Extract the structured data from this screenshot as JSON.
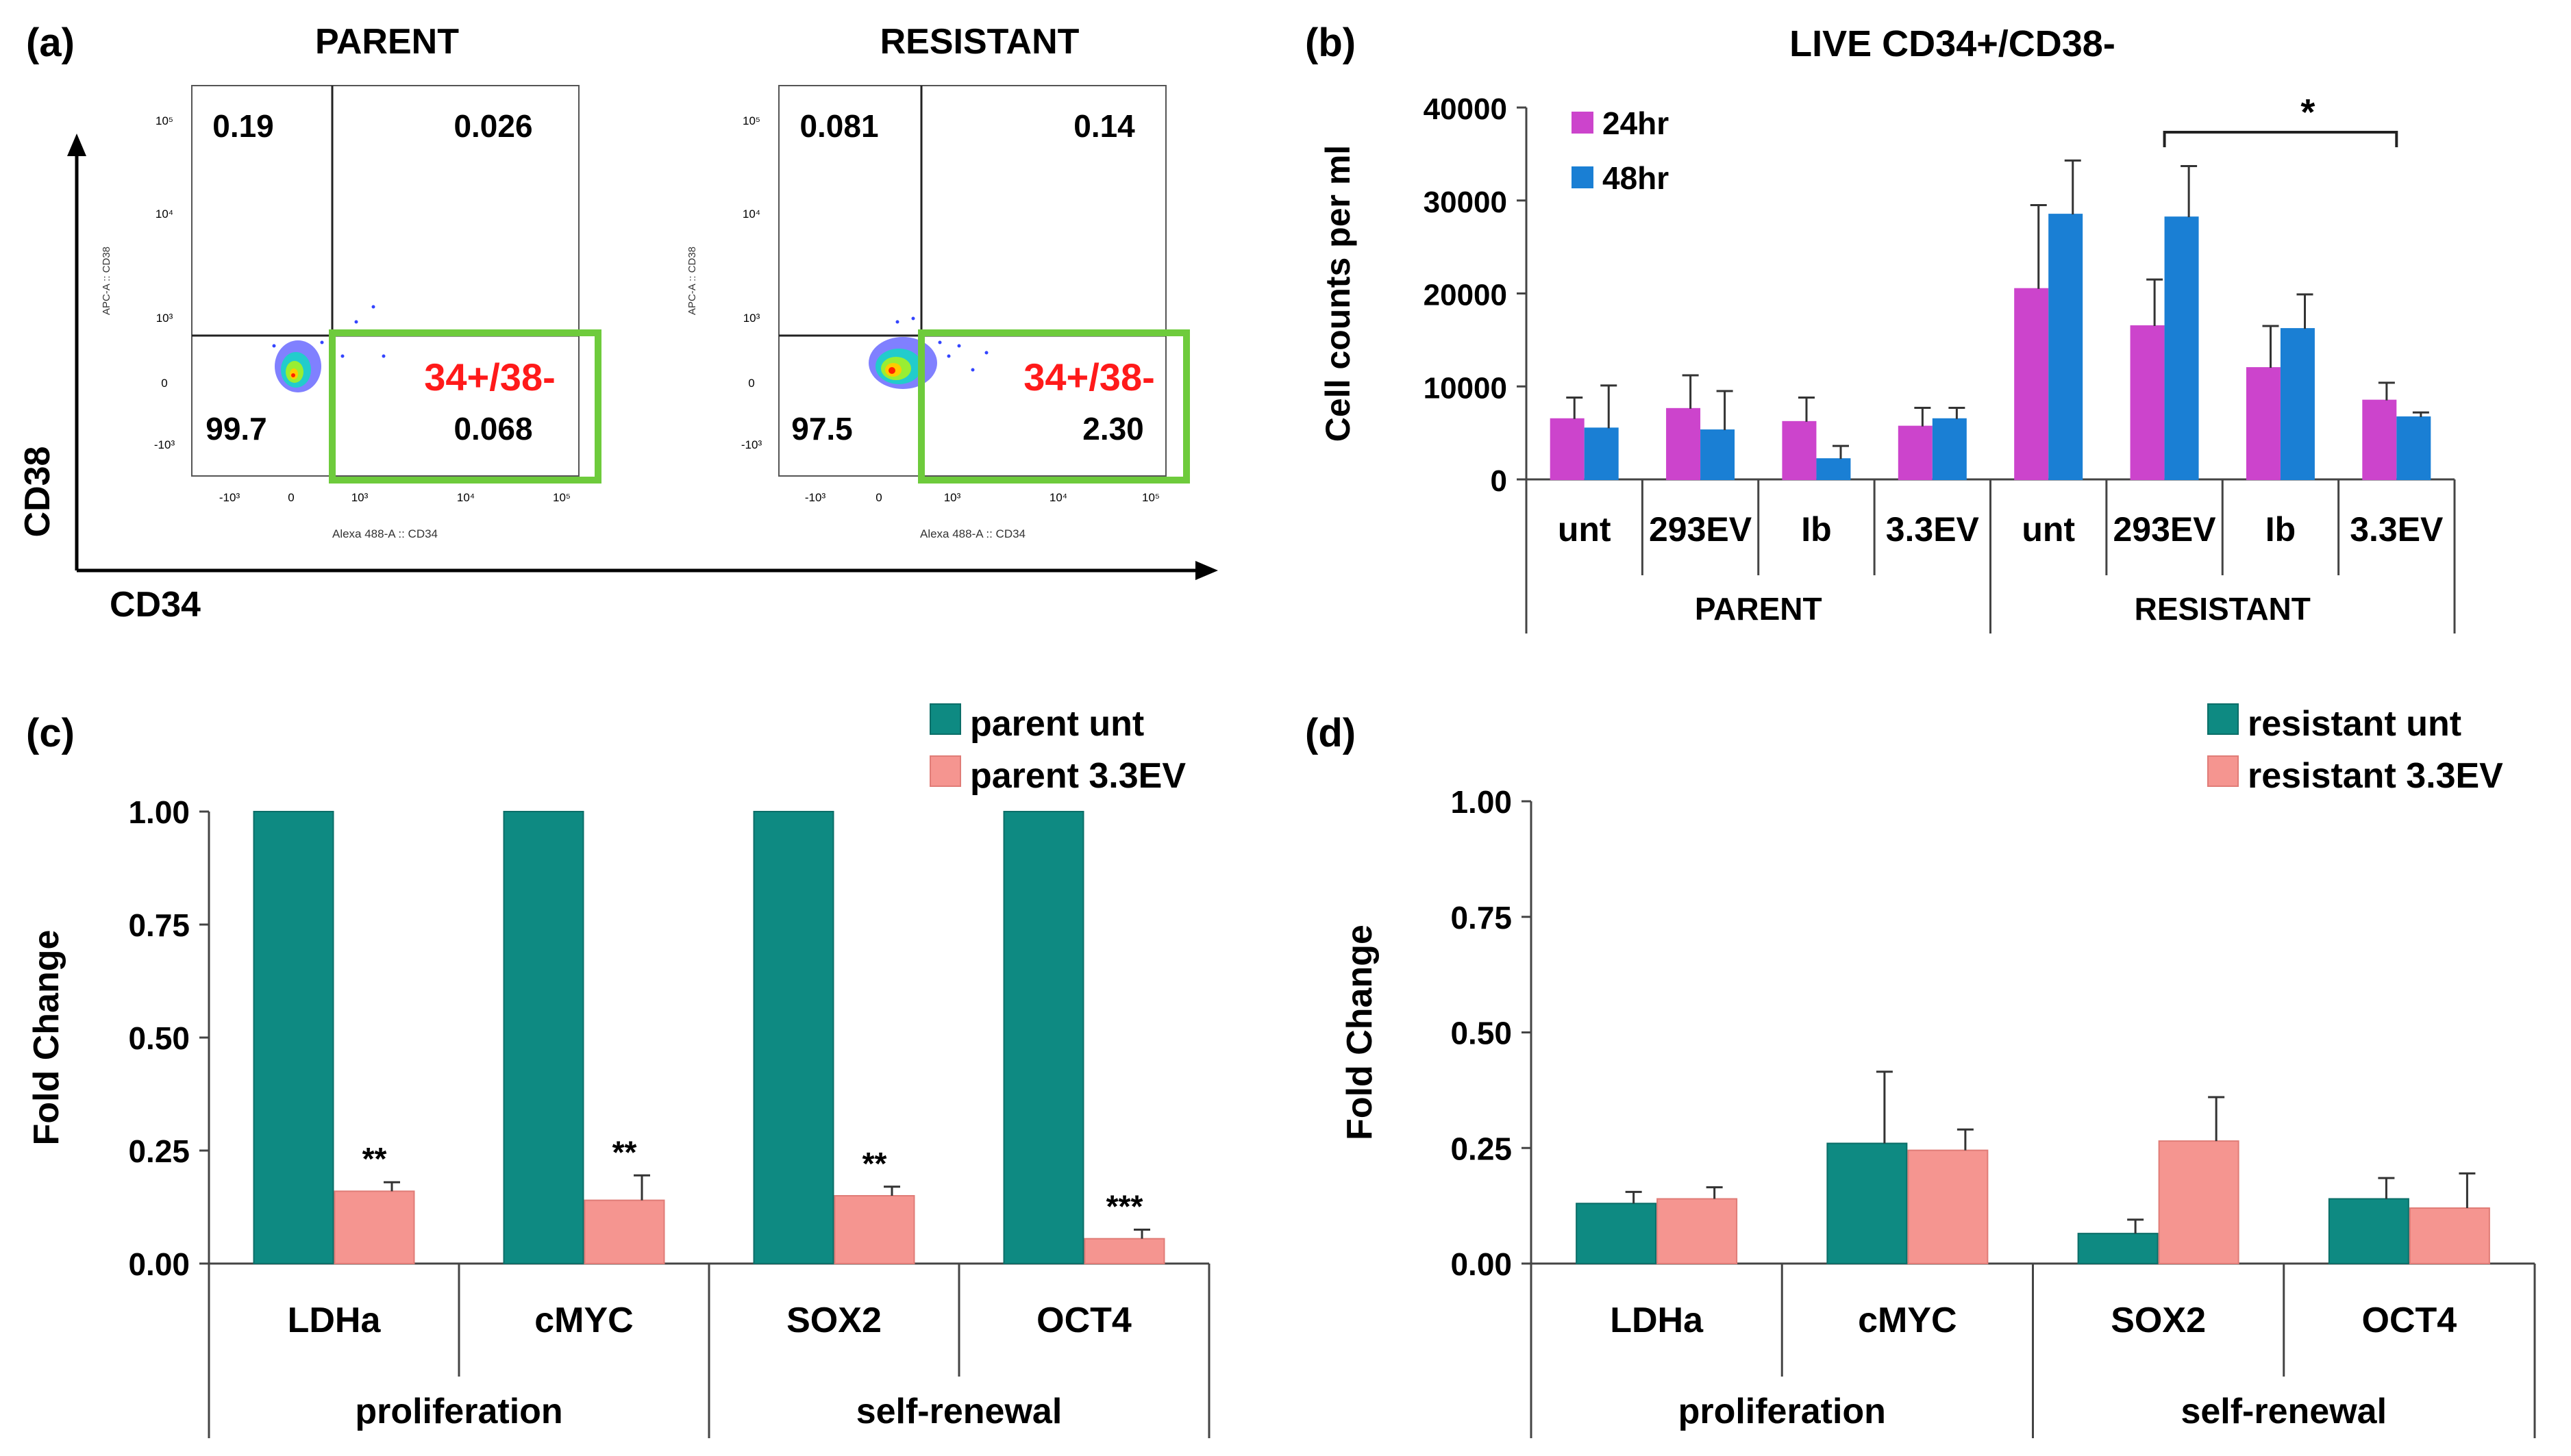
{
  "panel_a": {
    "label": "(a)",
    "y_axis_label": "CD38",
    "x_axis_label": "CD34",
    "gate_label": "34+/38-",
    "plot_y_label": "APC-A :: CD38",
    "plot_x_label": "Alexa 488-A :: CD34",
    "x_ticks": [
      "-10³",
      "0",
      "10³",
      "10⁴",
      "10⁵"
    ],
    "y_ticks": [
      "10⁵",
      "10⁴",
      "10³",
      "0",
      "-10³"
    ],
    "plots": [
      {
        "title": "PARENT",
        "q_ul": "0.19",
        "q_ur": "0.026",
        "q_ll": "99.7",
        "q_lr": "0.068"
      },
      {
        "title": "RESISTANT",
        "q_ul": "0.081",
        "q_ur": "0.14",
        "q_ll": "97.5",
        "q_lr": "2.30"
      }
    ]
  },
  "colors": {
    "magenta": "#cc44cc",
    "blue": "#1a7fd4",
    "teal": "#0e8a82",
    "salmon": "#f59590",
    "gate_green": "#6ecb3c",
    "gate_text_red": "#ff1a1a"
  },
  "chart_data": [
    {
      "panel": "(b)",
      "type": "bar",
      "title": "LIVE CD34+/CD38-",
      "ylabel": "Cell counts per ml",
      "ylim": [
        0,
        40000
      ],
      "yticks": [
        "0",
        "10000",
        "20000",
        "30000",
        "40000"
      ],
      "categories": [
        "unt",
        "293EV",
        "Ib",
        "3.3EV",
        "unt",
        "293EV",
        "Ib",
        "3.3EV"
      ],
      "groups": [
        "PARENT",
        "RESISTANT"
      ],
      "series": [
        {
          "name": "24hr",
          "values": [
            6500,
            7600,
            6200,
            5700,
            20500,
            16500,
            12000,
            8500
          ],
          "errors": [
            2300,
            3600,
            2600,
            2000,
            9000,
            5000,
            4500,
            1900
          ]
        },
        {
          "name": "48hr",
          "values": [
            5500,
            5300,
            2200,
            6500,
            28500,
            28200,
            16200,
            6700
          ],
          "errors": [
            4600,
            4200,
            1400,
            1200,
            5800,
            5500,
            3700,
            500
          ]
        }
      ],
      "annotation": "*"
    },
    {
      "panel": "(c)",
      "type": "bar",
      "ylabel": "Fold Change",
      "ylim": [
        0,
        1
      ],
      "yticks": [
        "0.00",
        "0.25",
        "0.50",
        "0.75",
        "1.00"
      ],
      "categories": [
        "LDHa",
        "cMYC",
        "SOX2",
        "OCT4"
      ],
      "groups": [
        "proliferation",
        "self-renewal"
      ],
      "series": [
        {
          "name": "parent unt",
          "values": [
            1.0,
            1.0,
            1.0,
            1.0
          ],
          "errors": [
            0,
            0,
            0,
            0
          ]
        },
        {
          "name": "parent 3.3EV",
          "values": [
            0.16,
            0.14,
            0.15,
            0.055
          ],
          "errors": [
            0.02,
            0.055,
            0.02,
            0.02
          ]
        }
      ],
      "significance": [
        "**",
        "**",
        "**",
        "***"
      ]
    },
    {
      "panel": "(d)",
      "type": "bar",
      "ylabel": "Fold Change",
      "ylim": [
        0,
        1
      ],
      "yticks": [
        "0.00",
        "0.25",
        "0.50",
        "0.75",
        "1.00"
      ],
      "categories": [
        "LDHa",
        "cMYC",
        "SOX2",
        "OCT4"
      ],
      "groups": [
        "proliferation",
        "self-renewal"
      ],
      "series": [
        {
          "name": "resistant unt",
          "values": [
            0.13,
            0.26,
            0.065,
            0.14
          ],
          "errors": [
            0.025,
            0.155,
            0.03,
            0.045
          ]
        },
        {
          "name": "resistant 3.3EV",
          "values": [
            0.14,
            0.245,
            0.265,
            0.12
          ],
          "errors": [
            0.025,
            0.045,
            0.095,
            0.075
          ]
        }
      ]
    }
  ]
}
